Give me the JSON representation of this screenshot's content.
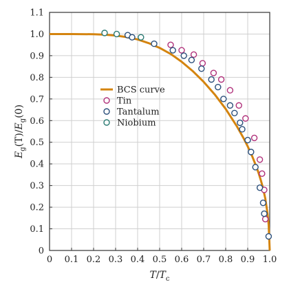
{
  "chart_data": {
    "type": "scatter",
    "xlabel_parts": [
      "T",
      "/",
      "T",
      "c"
    ],
    "ylabel_parts": [
      "E",
      "g",
      "(T)/",
      "E",
      "g",
      "(0)"
    ],
    "xlim": [
      0,
      1.0
    ],
    "ylim": [
      0,
      1.1
    ],
    "x_ticks": [
      "0",
      "0.1",
      "0.2",
      "0.3",
      "0.4",
      "0.5",
      "0.6",
      "0.7",
      "0.8",
      "0.9",
      "1.0"
    ],
    "y_ticks": [
      "0",
      "0.1",
      "0.2",
      "0.3",
      "0.4",
      "0.5",
      "0.6",
      "0.7",
      "0.8",
      "0.9",
      "1.0",
      "1.1"
    ],
    "grid": true,
    "legend_position": "center-left",
    "curve": {
      "name": "BCS curve",
      "color": "#d4840f",
      "x": [
        0,
        0.1,
        0.2,
        0.25,
        0.3,
        0.35,
        0.4,
        0.45,
        0.5,
        0.55,
        0.6,
        0.65,
        0.7,
        0.75,
        0.8,
        0.85,
        0.88,
        0.9,
        0.92,
        0.94,
        0.95,
        0.96,
        0.97,
        0.98,
        0.99,
        0.995,
        1.0
      ],
      "y": [
        1.0,
        1.0,
        0.999,
        0.997,
        0.993,
        0.986,
        0.975,
        0.958,
        0.936,
        0.908,
        0.872,
        0.829,
        0.779,
        0.721,
        0.654,
        0.575,
        0.521,
        0.481,
        0.436,
        0.385,
        0.356,
        0.323,
        0.286,
        0.239,
        0.171,
        0.12,
        0.0
      ]
    },
    "series": [
      {
        "name": "Tin",
        "color": "#b0307a",
        "x": [
          0.55,
          0.6,
          0.655,
          0.695,
          0.745,
          0.78,
          0.82,
          0.86,
          0.89,
          0.93,
          0.955,
          0.965,
          0.975,
          0.98
        ],
        "y": [
          0.95,
          0.925,
          0.905,
          0.865,
          0.82,
          0.79,
          0.74,
          0.67,
          0.61,
          0.52,
          0.42,
          0.355,
          0.28,
          0.145
        ]
      },
      {
        "name": "Tantalum",
        "color": "#2a4e7a",
        "x": [
          0.355,
          0.375,
          0.475,
          0.56,
          0.61,
          0.645,
          0.69,
          0.735,
          0.765,
          0.79,
          0.82,
          0.84,
          0.865,
          0.875,
          0.9,
          0.915,
          0.935,
          0.955,
          0.97,
          0.975,
          0.995
        ],
        "y": [
          0.995,
          0.985,
          0.955,
          0.925,
          0.9,
          0.88,
          0.84,
          0.79,
          0.755,
          0.7,
          0.67,
          0.635,
          0.59,
          0.56,
          0.51,
          0.455,
          0.385,
          0.29,
          0.22,
          0.17,
          0.065
        ]
      },
      {
        "name": "Niobium",
        "color": "#2a7a72",
        "x": [
          0.25,
          0.305,
          0.415
        ],
        "y": [
          1.005,
          1.0,
          0.985
        ]
      }
    ]
  }
}
